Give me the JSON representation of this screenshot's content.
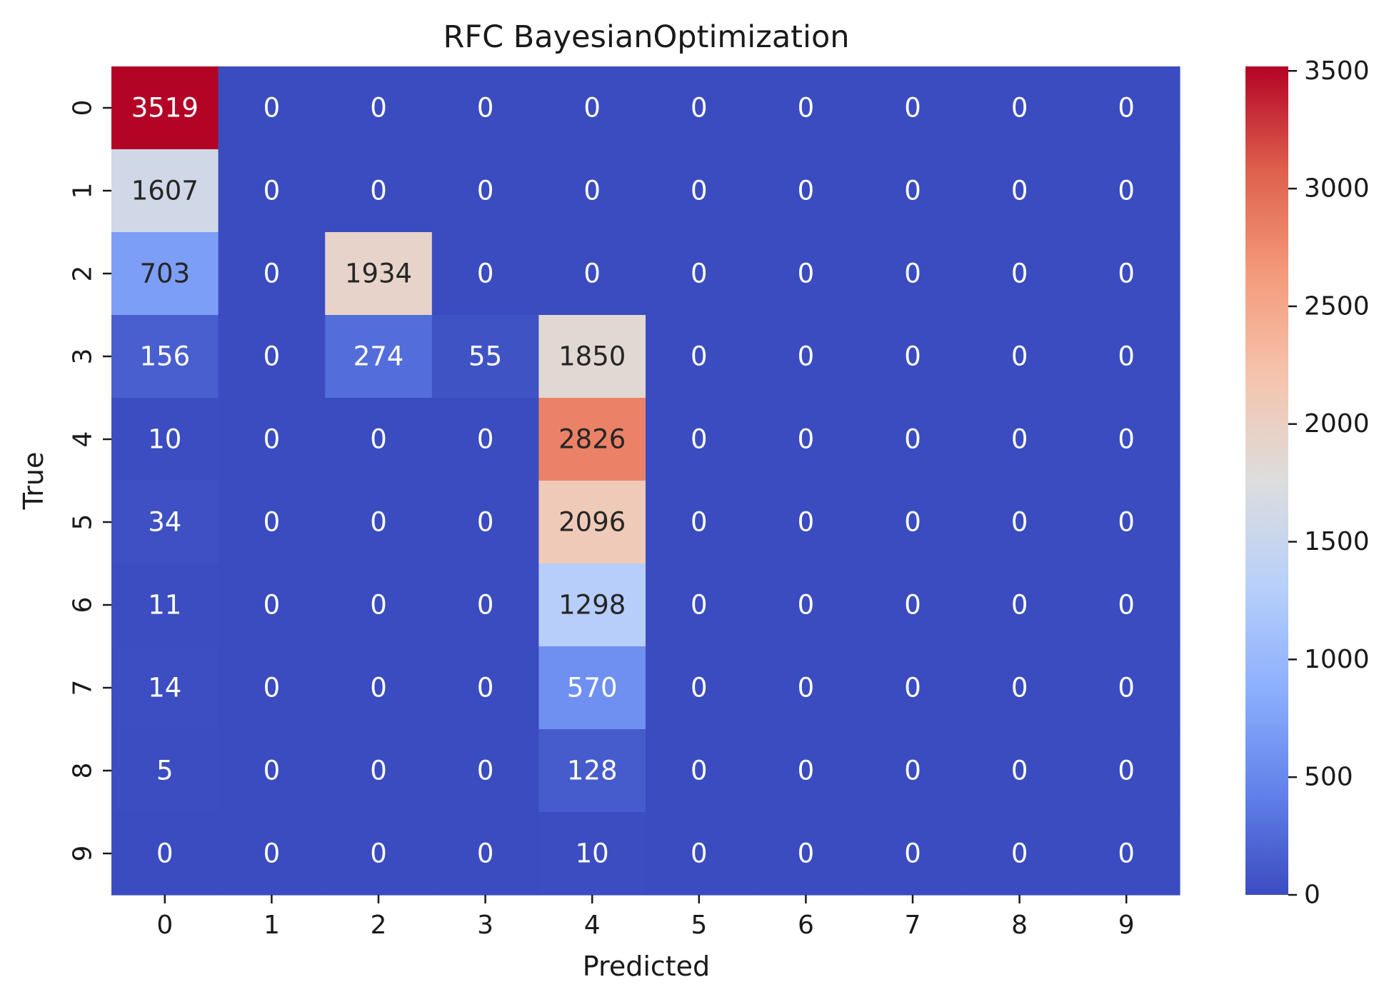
{
  "chart_data": {
    "type": "heatmap",
    "title": "RFC BayesianOptimization",
    "xlabel": "Predicted",
    "ylabel": "True",
    "x_categories": [
      "0",
      "1",
      "2",
      "3",
      "4",
      "5",
      "6",
      "7",
      "8",
      "9"
    ],
    "y_categories": [
      "0",
      "1",
      "2",
      "3",
      "4",
      "5",
      "6",
      "7",
      "8",
      "9"
    ],
    "values": [
      [
        3519,
        0,
        0,
        0,
        0,
        0,
        0,
        0,
        0,
        0
      ],
      [
        1607,
        0,
        0,
        0,
        0,
        0,
        0,
        0,
        0,
        0
      ],
      [
        703,
        0,
        1934,
        0,
        0,
        0,
        0,
        0,
        0,
        0
      ],
      [
        156,
        0,
        274,
        55,
        1850,
        0,
        0,
        0,
        0,
        0
      ],
      [
        10,
        0,
        0,
        0,
        2826,
        0,
        0,
        0,
        0,
        0
      ],
      [
        34,
        0,
        0,
        0,
        2096,
        0,
        0,
        0,
        0,
        0
      ],
      [
        11,
        0,
        0,
        0,
        1298,
        0,
        0,
        0,
        0,
        0
      ],
      [
        14,
        0,
        0,
        0,
        570,
        0,
        0,
        0,
        0,
        0
      ],
      [
        5,
        0,
        0,
        0,
        128,
        0,
        0,
        0,
        0,
        0
      ],
      [
        0,
        0,
        0,
        0,
        10,
        0,
        0,
        0,
        0,
        0
      ]
    ],
    "colormap": "coolwarm",
    "colorbar": {
      "range": [
        0,
        3519
      ],
      "ticks": [
        0,
        500,
        1000,
        1500,
        2000,
        2500,
        3000,
        3500
      ]
    },
    "grid": false,
    "legend": "colorbar-right"
  }
}
